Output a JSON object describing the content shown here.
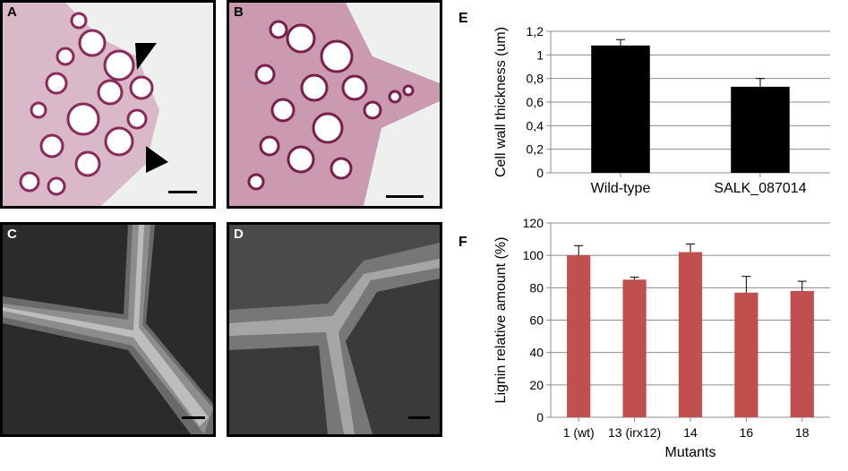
{
  "panels": {
    "a": {
      "label": "A"
    },
    "b": {
      "label": "B"
    },
    "c": {
      "label": "C"
    },
    "d": {
      "label": "D"
    },
    "e": {
      "label": "E"
    },
    "f": {
      "label": "F"
    }
  },
  "chart_data": [
    {
      "type": "bar",
      "panel": "E",
      "categories": [
        "Wild-type",
        "SALK_087014"
      ],
      "values": [
        1.08,
        0.73
      ],
      "errors": [
        0.05,
        0.07
      ],
      "ylabel": "Cell wall thickness (um)",
      "xlabel": "",
      "ylim": [
        0,
        1.2
      ],
      "yticks": [
        "0",
        "0,2",
        "0,4",
        "0,6",
        "0,8",
        "1",
        "1,2"
      ],
      "grid": true,
      "bar_color": "#000000"
    },
    {
      "type": "bar",
      "panel": "F",
      "categories": [
        "1 (wt)",
        "13 (irx12)",
        "14",
        "16",
        "18"
      ],
      "values": [
        100,
        85,
        102,
        77,
        78
      ],
      "errors": [
        6,
        1.5,
        5,
        10,
        6
      ],
      "ylabel": "Lignin relative amount (%)",
      "xlabel": "Mutants",
      "ylim": [
        0,
        120
      ],
      "yticks": [
        "0",
        "20",
        "40",
        "60",
        "80",
        "100",
        "120"
      ],
      "grid": true,
      "bar_color": "#c0504d"
    }
  ]
}
